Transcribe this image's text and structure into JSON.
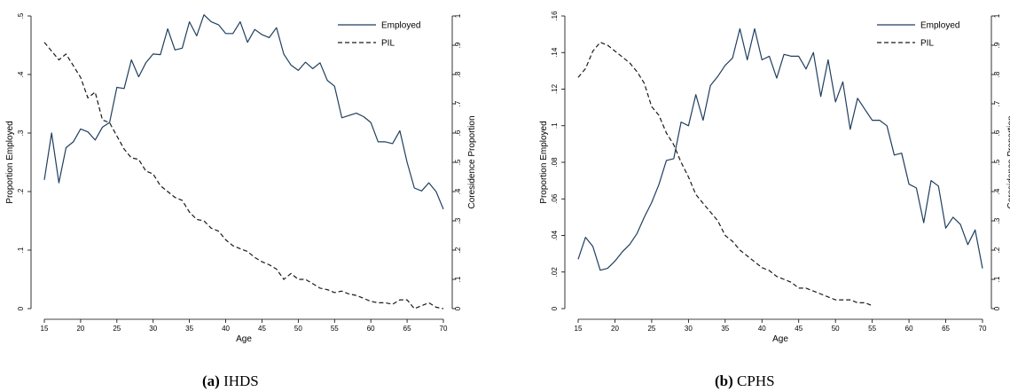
{
  "chart_data": [
    {
      "type": "line",
      "caption_label": "(a)",
      "caption_text": "IHDS",
      "xlabel": "Age",
      "ylabel": "Proportion Employed",
      "y2label": "Coresidence Proportion",
      "xlim": [
        15,
        70
      ],
      "ylim": [
        0,
        0.5
      ],
      "y2lim": [
        0,
        1
      ],
      "x_ticks": [
        "15",
        "20",
        "25",
        "30",
        "35",
        "40",
        "45",
        "50",
        "55",
        "60",
        "65",
        "70"
      ],
      "y_ticks": [
        "0",
        ".1",
        ".2",
        ".3",
        ".4",
        ".5"
      ],
      "y2_ticks": [
        "0",
        ".1",
        ".2",
        ".3",
        ".4",
        ".5",
        ".6",
        ".7",
        ".8",
        ".9",
        "1"
      ],
      "legend_position": "top-right",
      "series": [
        {
          "name": "Employed",
          "axis": "left",
          "style": "solid",
          "color": "#1f3f5f",
          "x": [
            15,
            16,
            17,
            18,
            19,
            20,
            21,
            22,
            23,
            24,
            25,
            26,
            27,
            28,
            29,
            30,
            31,
            32,
            33,
            34,
            35,
            36,
            37,
            38,
            39,
            40,
            41,
            42,
            43,
            44,
            45,
            46,
            47,
            48,
            49,
            50,
            51,
            52,
            53,
            54,
            55,
            56,
            57,
            58,
            59,
            60,
            61,
            62,
            63,
            64,
            65,
            66,
            67,
            68,
            69,
            70
          ],
          "values": [
            0.22,
            0.3,
            0.215,
            0.275,
            0.285,
            0.307,
            0.302,
            0.288,
            0.31,
            0.318,
            0.378,
            0.376,
            0.425,
            0.396,
            0.42,
            0.435,
            0.434,
            0.478,
            0.442,
            0.445,
            0.49,
            0.466,
            0.502,
            0.49,
            0.485,
            0.47,
            0.47,
            0.49,
            0.455,
            0.477,
            0.468,
            0.463,
            0.48,
            0.435,
            0.416,
            0.407,
            0.421,
            0.41,
            0.42,
            0.39,
            0.38,
            0.326,
            0.33,
            0.334,
            0.328,
            0.318,
            0.285,
            0.285,
            0.282,
            0.304,
            0.25,
            0.206,
            0.201,
            0.215,
            0.2,
            0.17
          ]
        },
        {
          "name": "PIL",
          "axis": "right",
          "style": "dashed",
          "color": "#1a1a1a",
          "x": [
            15,
            16,
            17,
            18,
            19,
            20,
            21,
            22,
            23,
            24,
            25,
            26,
            27,
            28,
            29,
            30,
            31,
            32,
            33,
            34,
            35,
            36,
            37,
            38,
            39,
            40,
            41,
            42,
            43,
            44,
            45,
            46,
            47,
            48,
            49,
            50,
            51,
            52,
            53,
            54,
            55,
            56,
            57,
            58,
            59,
            60,
            61,
            62,
            63,
            64,
            65,
            66,
            67,
            68,
            69,
            70
          ],
          "values": [
            0.91,
            0.88,
            0.85,
            0.87,
            0.83,
            0.79,
            0.72,
            0.74,
            0.645,
            0.635,
            0.59,
            0.545,
            0.515,
            0.51,
            0.47,
            0.46,
            0.42,
            0.4,
            0.38,
            0.37,
            0.33,
            0.305,
            0.3,
            0.275,
            0.265,
            0.235,
            0.215,
            0.205,
            0.195,
            0.175,
            0.16,
            0.15,
            0.135,
            0.1,
            0.12,
            0.1,
            0.1,
            0.085,
            0.07,
            0.065,
            0.055,
            0.06,
            0.05,
            0.045,
            0.035,
            0.025,
            0.02,
            0.02,
            0.015,
            0.03,
            0.03,
            0.0,
            0.01,
            0.02,
            0.005,
            0.0
          ]
        }
      ]
    },
    {
      "type": "line",
      "caption_label": "(b)",
      "caption_text": "CPHS",
      "xlabel": "Age",
      "ylabel": "Proportion Employed",
      "y2label": "Coresidence Proportion",
      "xlim": [
        15,
        70
      ],
      "ylim": [
        0,
        0.16
      ],
      "y2lim": [
        0,
        1
      ],
      "x_ticks": [
        "15",
        "20",
        "25",
        "30",
        "35",
        "40",
        "45",
        "50",
        "55",
        "60",
        "65",
        "70"
      ],
      "y_ticks": [
        "0",
        ".02",
        ".04",
        ".06",
        ".08",
        ".1",
        ".12",
        ".14",
        ".16"
      ],
      "y2_ticks": [
        "0",
        ".1",
        ".2",
        ".3",
        ".4",
        ".5",
        ".6",
        ".7",
        ".8",
        ".9",
        "1"
      ],
      "legend_position": "top-right",
      "series": [
        {
          "name": "Employed",
          "axis": "left",
          "style": "solid",
          "color": "#1f3f5f",
          "x": [
            15,
            16,
            17,
            18,
            19,
            20,
            21,
            22,
            23,
            24,
            25,
            26,
            27,
            28,
            29,
            30,
            31,
            32,
            33,
            34,
            35,
            36,
            37,
            38,
            39,
            40,
            41,
            42,
            43,
            44,
            45,
            46,
            47,
            48,
            49,
            50,
            51,
            52,
            53,
            54,
            55,
            56,
            57,
            58,
            59,
            60,
            61,
            62,
            63,
            64,
            65,
            66,
            67,
            68,
            69,
            70
          ],
          "values": [
            0.027,
            0.039,
            0.034,
            0.021,
            0.022,
            0.026,
            0.031,
            0.035,
            0.041,
            0.05,
            0.058,
            0.068,
            0.081,
            0.082,
            0.102,
            0.1,
            0.117,
            0.103,
            0.122,
            0.127,
            0.133,
            0.137,
            0.153,
            0.136,
            0.153,
            0.136,
            0.138,
            0.126,
            0.139,
            0.138,
            0.138,
            0.131,
            0.14,
            0.116,
            0.136,
            0.113,
            0.124,
            0.098,
            0.115,
            0.109,
            0.103,
            0.103,
            0.1,
            0.084,
            0.085,
            0.068,
            0.066,
            0.047,
            0.07,
            0.067,
            0.044,
            0.05,
            0.046,
            0.035,
            0.043,
            0.022
          ]
        },
        {
          "name": "PIL",
          "axis": "right",
          "style": "dashed",
          "color": "#1a1a1a",
          "x": [
            15,
            16,
            17,
            18,
            19,
            20,
            21,
            22,
            23,
            24,
            25,
            26,
            27,
            28,
            29,
            30,
            31,
            32,
            33,
            34,
            35,
            36,
            37,
            38,
            39,
            40,
            41,
            42,
            43,
            44,
            45,
            46,
            47,
            48,
            49,
            50,
            51,
            52,
            53,
            54,
            55
          ],
          "values": [
            0.79,
            0.82,
            0.88,
            0.91,
            0.9,
            0.88,
            0.86,
            0.84,
            0.81,
            0.77,
            0.69,
            0.66,
            0.6,
            0.56,
            0.5,
            0.45,
            0.39,
            0.36,
            0.33,
            0.3,
            0.25,
            0.23,
            0.2,
            0.18,
            0.16,
            0.14,
            0.13,
            0.11,
            0.1,
            0.09,
            0.07,
            0.07,
            0.06,
            0.05,
            0.04,
            0.03,
            0.03,
            0.03,
            0.02,
            0.02,
            0.01
          ]
        }
      ]
    }
  ]
}
